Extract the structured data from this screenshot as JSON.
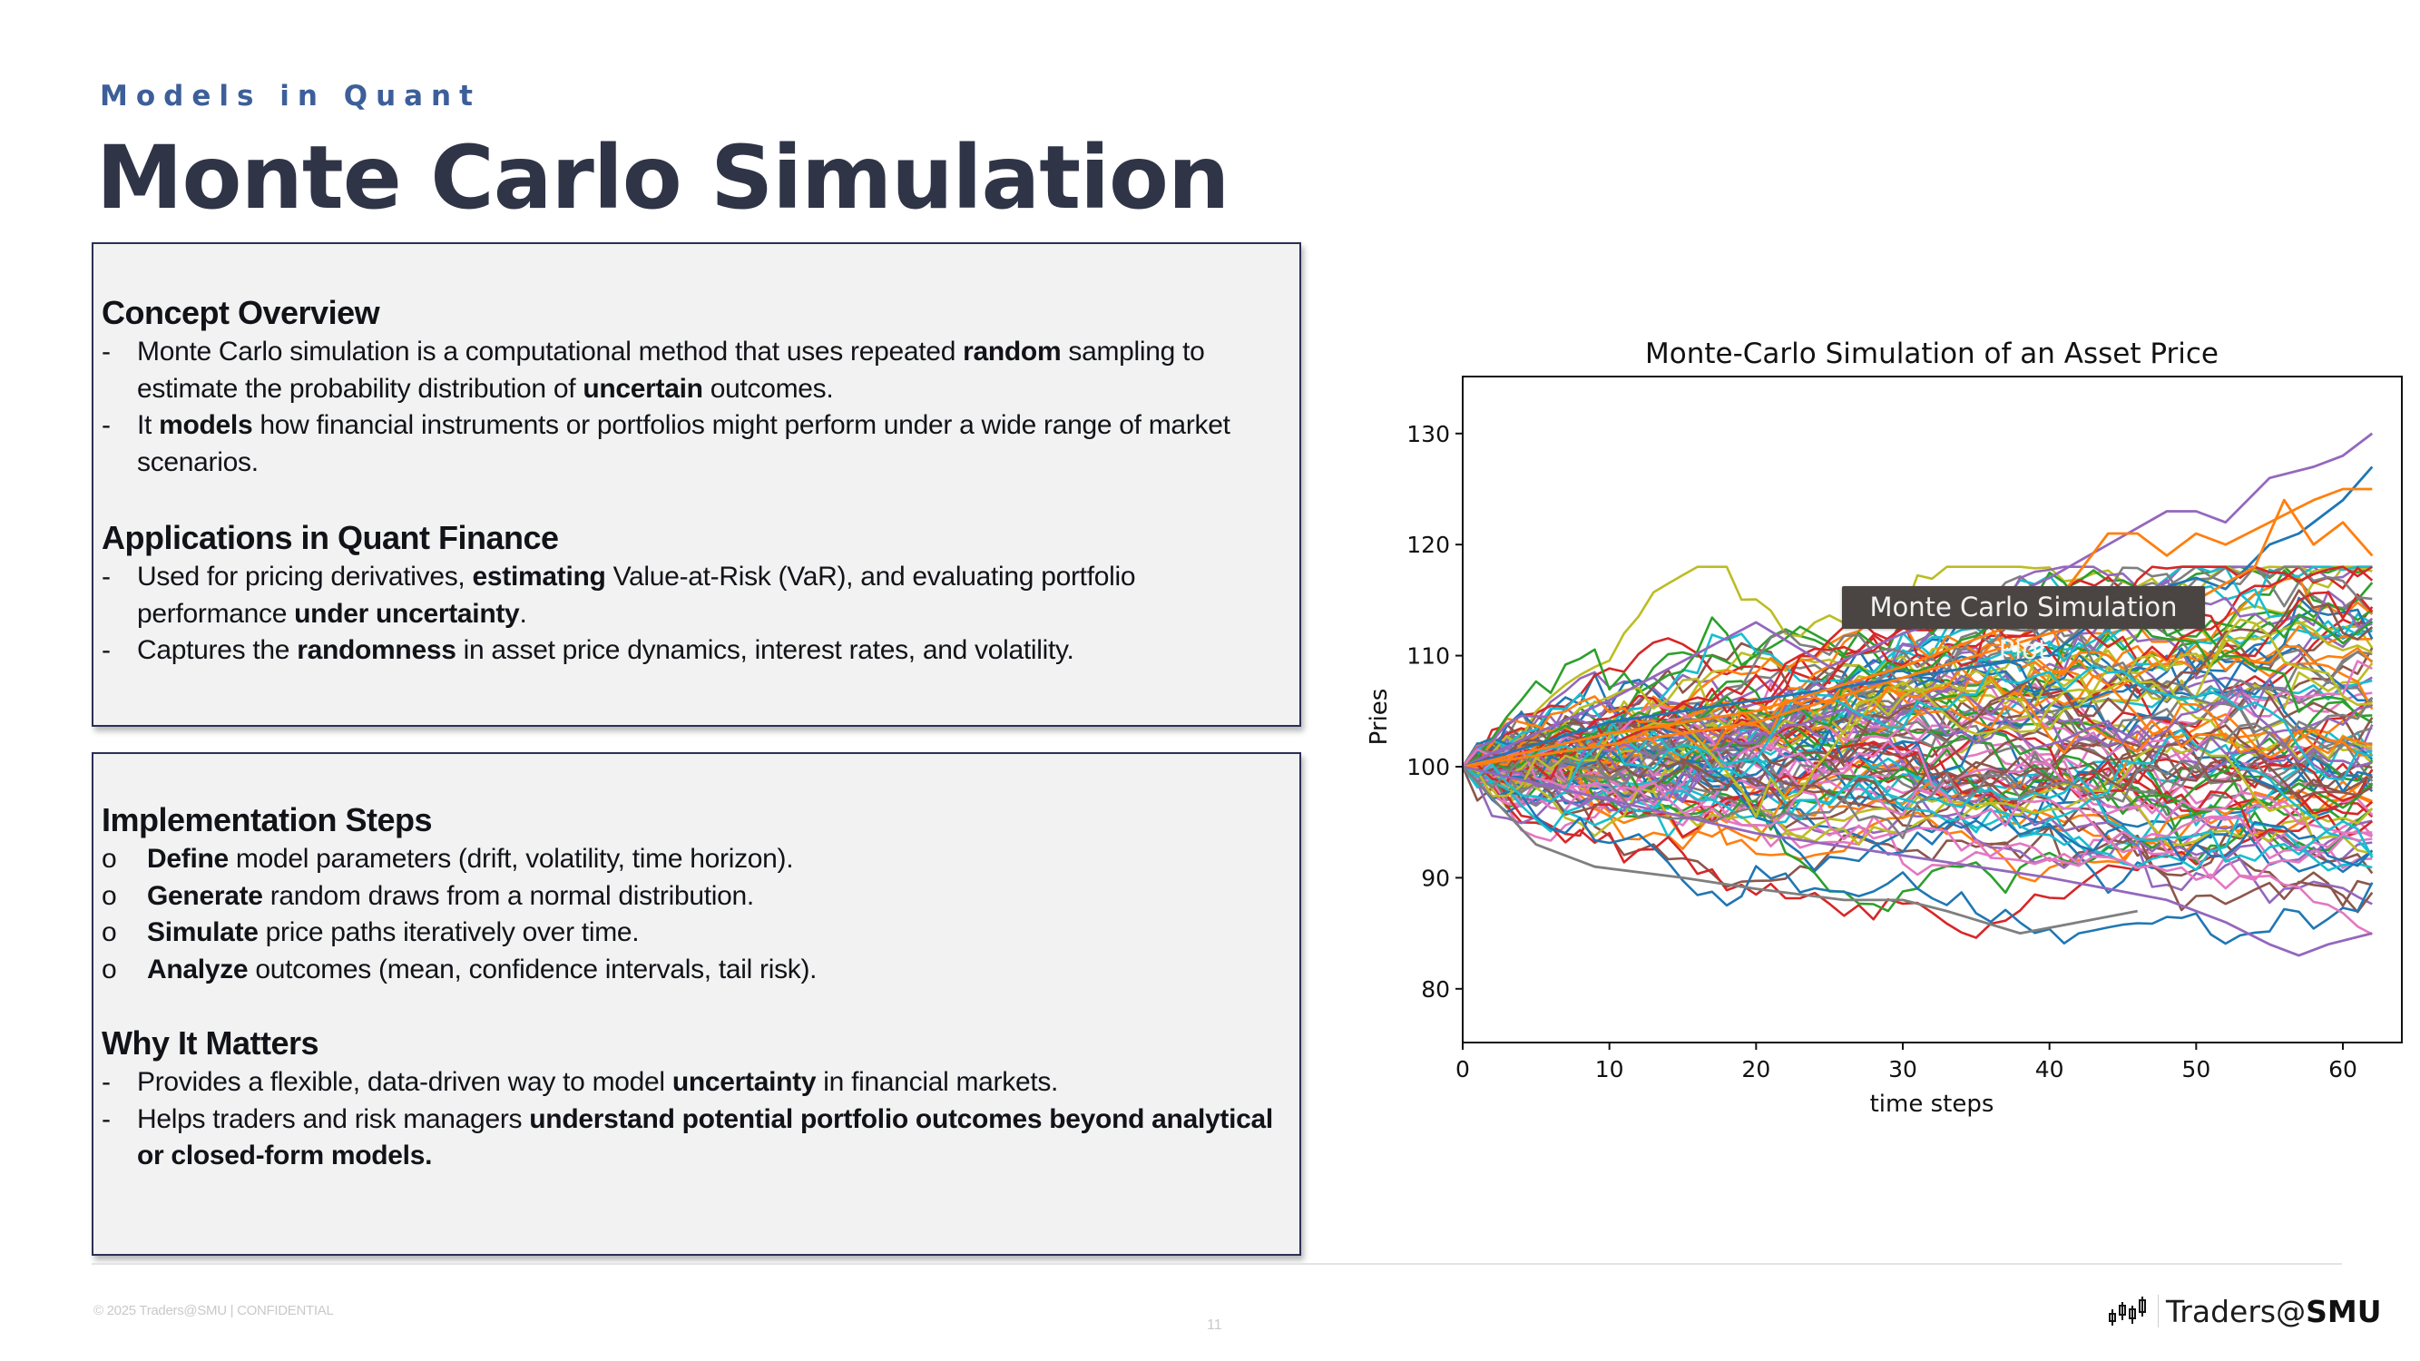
{
  "header": {
    "kicker": "Models in Quant",
    "title": "Monte Carlo Simulation"
  },
  "box1": {
    "sections": [
      {
        "heading": "Concept Overview",
        "bullet": "-",
        "items": [
          [
            {
              "t": "Monte Carlo simulation is a computational method that uses repeated "
            },
            {
              "t": "random",
              "b": true
            },
            {
              "t": " sampling to estimate the probability distribution of "
            },
            {
              "t": "uncertain",
              "b": true
            },
            {
              "t": " outcomes."
            }
          ],
          [
            {
              "t": "It "
            },
            {
              "t": "models",
              "b": true
            },
            {
              "t": " how financial instruments or portfolios might perform under a wide range of market scenarios."
            }
          ]
        ]
      },
      {
        "heading": "Applications in Quant Finance",
        "bullet": "-",
        "items": [
          [
            {
              "t": "Used for pricing derivatives, "
            },
            {
              "t": "estimating",
              "b": true
            },
            {
              "t": " Value-at-Risk (VaR), and evaluating portfolio performance "
            },
            {
              "t": "under uncertainty",
              "b": true
            },
            {
              "t": "."
            }
          ],
          [
            {
              "t": "Captures the "
            },
            {
              "t": "randomness",
              "b": true
            },
            {
              "t": " in asset price dynamics, interest rates, and volatility."
            }
          ]
        ]
      }
    ]
  },
  "box2": {
    "sections": [
      {
        "heading": "Implementation Steps",
        "bullet": "o",
        "items": [
          [
            {
              "t": "Define",
              "b": true
            },
            {
              "t": " model parameters (drift, volatility, time horizon)."
            }
          ],
          [
            {
              "t": "Generate",
              "b": true
            },
            {
              "t": " random draws from a normal distribution."
            }
          ],
          [
            {
              "t": "Simulate",
              "b": true
            },
            {
              "t": " price paths iteratively over time."
            }
          ],
          [
            {
              "t": "Analyze",
              "b": true
            },
            {
              "t": " outcomes (mean, confidence intervals, tail risk)."
            }
          ]
        ]
      },
      {
        "heading": "Why It Matters",
        "bullet": "-",
        "items": [
          [
            {
              "t": "Provides a flexible, data-driven way to model "
            },
            {
              "t": "uncertainty",
              "b": true
            },
            {
              "t": " in financial markets."
            }
          ],
          [
            {
              "t": "Helps traders and risk managers "
            },
            {
              "t": "understand potential portfolio outcomes beyond analytical or closed-form models.",
              "b": true
            }
          ]
        ]
      }
    ]
  },
  "chart_tooltip": "Monte Carlo Simulation Plot",
  "footer": {
    "copyright": "© 2025 Traders@SMU | CONFIDENTIAL",
    "page_number": "11",
    "brand_light": "Traders@",
    "brand_bold": "SMU"
  },
  "chart_data": {
    "type": "line",
    "title": "Monte-Carlo Simulation of an Asset Price",
    "xlabel": "time steps",
    "ylabel": "Pries",
    "xlim": [
      0,
      64
    ],
    "ylim": [
      75,
      135
    ],
    "xticks": [
      0,
      10,
      20,
      30,
      40,
      50,
      60
    ],
    "yticks": [
      80,
      90,
      100,
      110,
      120,
      130
    ],
    "grid": false,
    "legend": null,
    "num_paths": 100,
    "num_steps": 63,
    "start_value": 100,
    "palette": [
      "#1f77b4",
      "#ff7f0e",
      "#2ca02c",
      "#d62728",
      "#9467bd",
      "#8c564b",
      "#e377c2",
      "#7f7f7f",
      "#bcbd22",
      "#17becf"
    ],
    "highlighted_paths": [
      {
        "name": "max-purple",
        "color": "#9467bd",
        "points": [
          [
            0,
            100
          ],
          [
            10,
            106
          ],
          [
            20,
            113
          ],
          [
            25,
            109
          ],
          [
            30,
            112
          ],
          [
            35,
            114
          ],
          [
            40,
            117
          ],
          [
            44,
            120
          ],
          [
            48,
            123
          ],
          [
            50,
            123
          ],
          [
            52,
            122
          ],
          [
            55,
            126
          ],
          [
            58,
            127
          ],
          [
            60,
            128
          ],
          [
            62,
            130
          ]
        ]
      },
      {
        "name": "high-blue",
        "color": "#1f77b4",
        "points": [
          [
            0,
            100
          ],
          [
            10,
            104
          ],
          [
            20,
            106
          ],
          [
            30,
            108
          ],
          [
            40,
            110
          ],
          [
            45,
            115
          ],
          [
            50,
            117
          ],
          [
            52,
            116
          ],
          [
            55,
            120
          ],
          [
            57,
            121
          ],
          [
            60,
            124
          ],
          [
            62,
            127
          ]
        ]
      },
      {
        "name": "high-orange",
        "color": "#ff7f0e",
        "points": [
          [
            0,
            100
          ],
          [
            10,
            103
          ],
          [
            20,
            105
          ],
          [
            30,
            109
          ],
          [
            40,
            114
          ],
          [
            44,
            121
          ],
          [
            46,
            121
          ],
          [
            48,
            119
          ],
          [
            50,
            121
          ],
          [
            52,
            120
          ],
          [
            55,
            122
          ],
          [
            58,
            124
          ],
          [
            60,
            125
          ],
          [
            62,
            125
          ]
        ]
      },
      {
        "name": "orange-reversal",
        "color": "#ff7f0e",
        "points": [
          [
            0,
            100
          ],
          [
            20,
            104
          ],
          [
            40,
            112
          ],
          [
            50,
            115
          ],
          [
            54,
            118
          ],
          [
            56,
            124
          ],
          [
            58,
            120
          ],
          [
            60,
            122
          ],
          [
            62,
            119
          ]
        ]
      },
      {
        "name": "min-purple",
        "color": "#9467bd",
        "points": [
          [
            0,
            100
          ],
          [
            10,
            97
          ],
          [
            20,
            94
          ],
          [
            30,
            92
          ],
          [
            40,
            90
          ],
          [
            48,
            88
          ],
          [
            52,
            86
          ],
          [
            55,
            84
          ],
          [
            57,
            83
          ],
          [
            59,
            84
          ],
          [
            62,
            85
          ]
        ]
      },
      {
        "name": "low-gray",
        "color": "#7f7f7f",
        "points": [
          [
            0,
            100
          ],
          [
            5,
            93
          ],
          [
            9,
            91
          ],
          [
            15,
            90
          ],
          [
            20,
            89
          ],
          [
            26,
            88
          ],
          [
            30,
            88
          ],
          [
            33,
            87
          ],
          [
            38,
            85
          ],
          [
            42,
            86
          ],
          [
            46,
            87
          ]
        ]
      }
    ],
    "final_value_range": [
      83,
      130
    ]
  }
}
